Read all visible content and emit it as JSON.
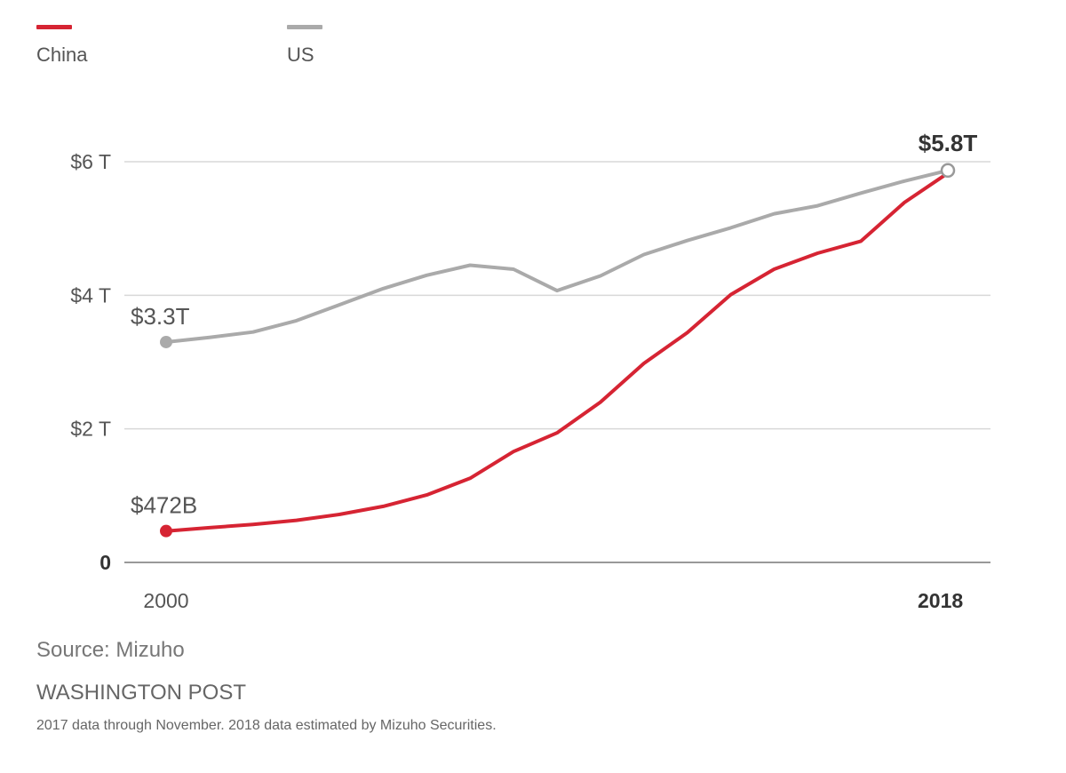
{
  "legend": [
    {
      "name": "China",
      "color": "#d62433"
    },
    {
      "name": "US",
      "color": "#aaaaaa"
    }
  ],
  "chart_data": {
    "type": "line",
    "title": "",
    "xlabel": "",
    "ylabel": "",
    "x": [
      2000,
      2001,
      2002,
      2003,
      2004,
      2005,
      2006,
      2007,
      2008,
      2009,
      2010,
      2011,
      2012,
      2013,
      2014,
      2015,
      2016,
      2017,
      2018
    ],
    "xlim": [
      2000,
      2018
    ],
    "ylim": [
      0,
      6
    ],
    "x_tick_labels": [
      {
        "value": 2000,
        "label": "2000",
        "bold": false
      },
      {
        "value": 2018,
        "label": "2018",
        "bold": true
      }
    ],
    "y_ticks": [
      {
        "value": 0,
        "label": "0",
        "bold": true
      },
      {
        "value": 2,
        "label": "$2 T",
        "bold": false
      },
      {
        "value": 4,
        "label": "$4 T",
        "bold": false
      },
      {
        "value": 6,
        "label": "$6 T",
        "bold": false
      }
    ],
    "grid": true,
    "legend_position": "top-left",
    "units": "trillions USD",
    "series": [
      {
        "name": "US",
        "color": "#aaaaaa",
        "values": [
          3.3,
          3.37,
          3.45,
          3.62,
          3.86,
          4.1,
          4.3,
          4.45,
          4.39,
          4.07,
          4.29,
          4.61,
          4.82,
          5.01,
          5.22,
          5.34,
          5.53,
          5.71,
          5.87
        ]
      },
      {
        "name": "China",
        "color": "#d62433",
        "values": [
          0.47,
          0.52,
          0.57,
          0.63,
          0.72,
          0.84,
          1.01,
          1.26,
          1.66,
          1.94,
          2.4,
          2.98,
          3.44,
          4.01,
          4.39,
          4.63,
          4.81,
          5.39,
          5.83
        ]
      }
    ],
    "annotations": [
      {
        "series": "US",
        "x": 2000,
        "y": 3.3,
        "text": "$3.3T",
        "bold": false
      },
      {
        "series": "China",
        "x": 2000,
        "y": 0.472,
        "text": "$472B",
        "bold": false
      },
      {
        "series": "both",
        "x": 2018,
        "y": 5.8,
        "text": "$5.8T",
        "bold": true
      }
    ]
  },
  "footer": {
    "source": "Source: Mizuho",
    "credit": "WASHINGTON POST",
    "note": "2017 data through November. 2018 data estimated by Mizuho Securities."
  }
}
